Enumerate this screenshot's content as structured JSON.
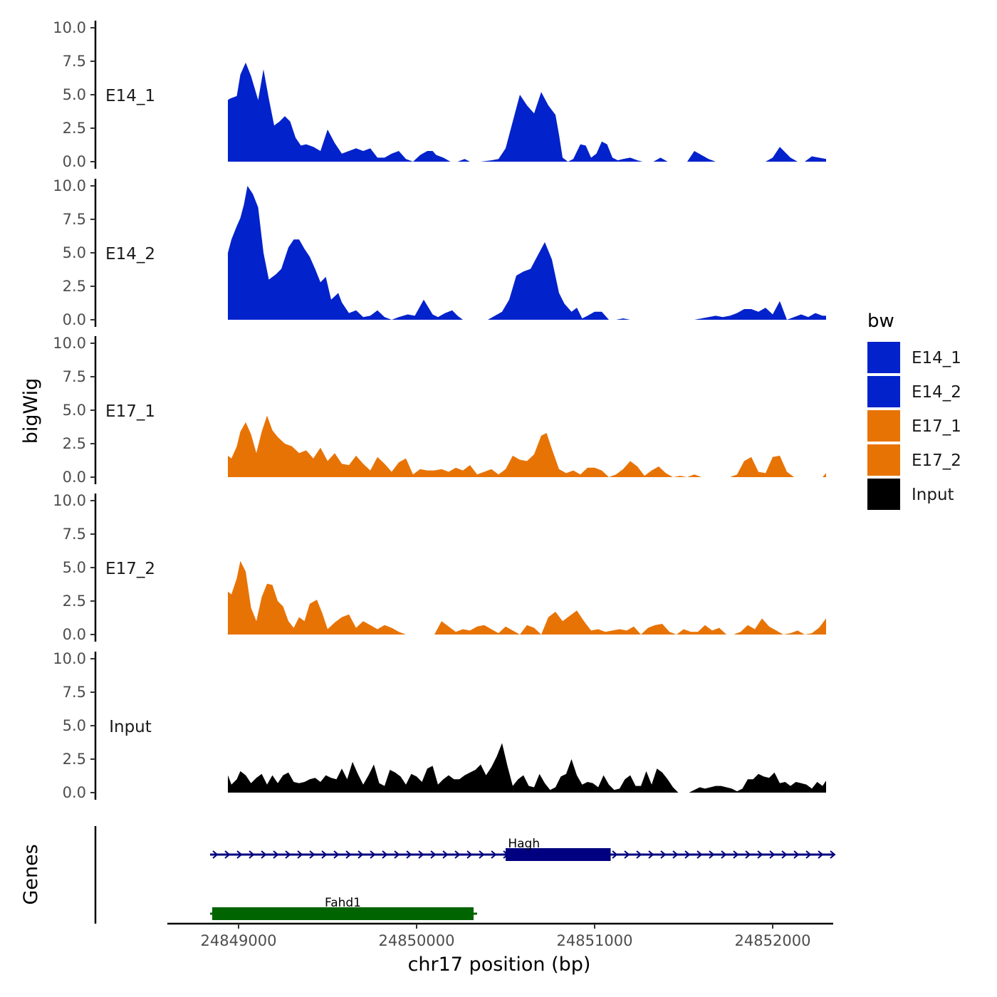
{
  "chart_data": {
    "type": "area",
    "xlabel": "chr17 position (bp)",
    "ylabel": "bigWig",
    "genes_label": "Genes",
    "xlim": [
      24848600,
      24852340
    ],
    "ylim": [
      0,
      10
    ],
    "x_ticks": [
      24849000,
      24850000,
      24851000,
      24852000
    ],
    "x_tick_labels": [
      "24849000",
      "24850000",
      "24851000",
      "24852000"
    ],
    "y_ticks": [
      0,
      2.5,
      5,
      7.5,
      10
    ],
    "y_tick_labels": [
      "0.0",
      "2.5",
      "5.0",
      "7.5",
      "10.0"
    ],
    "legend": {
      "title": "bw",
      "position": "right",
      "entries": [
        {
          "label": "E14_1",
          "color": "#0222CB"
        },
        {
          "label": "E14_2",
          "color": "#0222CB"
        },
        {
          "label": "E17_1",
          "color": "#E87305"
        },
        {
          "label": "E17_2",
          "color": "#E87305"
        },
        {
          "label": "Input",
          "color": "#000000"
        }
      ]
    },
    "series": [
      {
        "name": "E14_1",
        "color": "#0222CB",
        "x": [
          24848940,
          24848950,
          24848990,
          24849010,
          24849040,
          24849070,
          24849110,
          24849140,
          24849170,
          24849200,
          24849230,
          24849260,
          24849290,
          24849320,
          24849350,
          24849380,
          24849420,
          24849460,
          24849500,
          24849540,
          24849580,
          24849620,
          24849660,
          24849700,
          24849740,
          24849780,
          24849820,
          24849860,
          24849900,
          24849940,
          24849980,
          24850020,
          24850060,
          24850090,
          24850110,
          24850150,
          24850190,
          24850230,
          24850270,
          24850300,
          24850330,
          24850360,
          24850420,
          24850460,
          24850500,
          24850540,
          24850580,
          24850620,
          24850660,
          24850700,
          24850740,
          24850780,
          24850800,
          24850820,
          24850850,
          24850880,
          24850920,
          24850950,
          24850980,
          24851010,
          24851040,
          24851070,
          24851100,
          24851130,
          24851160,
          24851200,
          24851240,
          24851270,
          24851300,
          24851330,
          24851370,
          24851410,
          24851440,
          24851480,
          24851520,
          24851560,
          24851600,
          24851640,
          24851680,
          24851720,
          24851760,
          24851800,
          24851860,
          24851920,
          24851960,
          24852000,
          24852040,
          24852100,
          24852140,
          24852180,
          24852220,
          24852260,
          24852300
        ],
        "y": [
          4.6,
          4.7,
          4.9,
          6.5,
          7.4,
          6.4,
          4.6,
          6.9,
          4.7,
          2.7,
          3.0,
          3.4,
          3.0,
          1.8,
          1.2,
          1.3,
          1.1,
          0.8,
          2.4,
          1.4,
          0.6,
          0.8,
          1.0,
          0.8,
          1.0,
          0.3,
          0.3,
          0.6,
          0.8,
          0.2,
          0.0,
          0.5,
          0.8,
          0.8,
          0.5,
          0.3,
          0.0,
          0.0,
          0.2,
          0.0,
          0.0,
          0.0,
          0.1,
          0.2,
          1.0,
          3.0,
          5.0,
          4.2,
          3.6,
          5.2,
          4.2,
          3.5,
          2.0,
          0.3,
          0.0,
          0.2,
          1.3,
          1.2,
          0.3,
          0.6,
          1.5,
          1.3,
          0.3,
          0.1,
          0.2,
          0.3,
          0.1,
          0.0,
          0.0,
          0.0,
          0.3,
          0.0,
          0.0,
          0.0,
          0.0,
          0.8,
          0.5,
          0.2,
          0.0,
          0.0,
          0.0,
          0.0,
          0.0,
          0.0,
          0.0,
          0.3,
          1.1,
          0.3,
          0.0,
          0.0,
          0.4,
          0.3,
          0.2
        ]
      },
      {
        "name": "E14_2",
        "color": "#0222CB",
        "x": [
          24848940,
          24848960,
          24848990,
          24849010,
          24849030,
          24849050,
          24849080,
          24849110,
          24849140,
          24849170,
          24849210,
          24849240,
          24849280,
          24849310,
          24849340,
          24849370,
          24849400,
          24849430,
          24849460,
          24849490,
          24849520,
          24849560,
          24849580,
          24849620,
          24849660,
          24849700,
          24849740,
          24849780,
          24849820,
          24849860,
          24849900,
          24849950,
          24849990,
          24850040,
          24850090,
          24850120,
          24850160,
          24850200,
          24850230,
          24850260,
          24850300,
          24850340,
          24850400,
          24850440,
          24850480,
          24850520,
          24850560,
          24850600,
          24850640,
          24850680,
          24850720,
          24850760,
          24850800,
          24850830,
          24850870,
          24850900,
          24850930,
          24850960,
          24851000,
          24851040,
          24851080,
          24851120,
          24851160,
          24851200,
          24851240,
          24851280,
          24851320,
          24851360,
          24851400,
          24851440,
          24851480,
          24851520,
          24851560,
          24851600,
          24851640,
          24851680,
          24851720,
          24851760,
          24851800,
          24851840,
          24851880,
          24851920,
          24851960,
          24852000,
          24852040,
          24852080,
          24852120,
          24852160,
          24852200,
          24852240,
          24852280,
          24852300
        ],
        "y": [
          5.0,
          6.0,
          7.0,
          7.6,
          8.6,
          10.0,
          9.4,
          8.4,
          5.0,
          3.0,
          3.4,
          3.8,
          5.4,
          6.0,
          6.0,
          5.3,
          4.7,
          3.8,
          2.8,
          3.2,
          1.5,
          2.0,
          1.3,
          0.5,
          0.7,
          0.2,
          0.3,
          0.7,
          0.2,
          0.0,
          0.2,
          0.4,
          0.3,
          1.5,
          0.4,
          0.2,
          0.5,
          0.7,
          0.3,
          0.0,
          0.0,
          0.0,
          0.0,
          0.3,
          0.6,
          1.5,
          3.3,
          3.6,
          3.8,
          4.8,
          5.8,
          4.5,
          2.0,
          1.2,
          0.6,
          0.9,
          0.1,
          0.3,
          0.6,
          0.6,
          0.0,
          0.0,
          0.1,
          0.0,
          0.0,
          0.0,
          0.0,
          0.0,
          0.0,
          0.0,
          0.0,
          0.0,
          0.0,
          0.1,
          0.2,
          0.3,
          0.2,
          0.3,
          0.5,
          0.8,
          0.8,
          0.6,
          0.9,
          0.4,
          1.4,
          0.0,
          0.2,
          0.4,
          0.2,
          0.5,
          0.3,
          0.3
        ]
      },
      {
        "name": "E17_1",
        "color": "#E87305",
        "x": [
          24848940,
          24848960,
          24848990,
          24849010,
          24849040,
          24849070,
          24849100,
          24849130,
          24849160,
          24849190,
          24849220,
          24849260,
          24849300,
          24849340,
          24849380,
          24849420,
          24849460,
          24849500,
          24849540,
          24849580,
          24849620,
          24849660,
          24849700,
          24849740,
          24849780,
          24849820,
          24849860,
          24849900,
          24849940,
          24849980,
          24850020,
          24850060,
          24850100,
          24850140,
          24850180,
          24850220,
          24850260,
          24850300,
          24850340,
          24850380,
          24850420,
          24850460,
          24850500,
          24850540,
          24850580,
          24850620,
          24850660,
          24850700,
          24850730,
          24850760,
          24850800,
          24850840,
          24850880,
          24850920,
          24850960,
          24851000,
          24851040,
          24851080,
          24851120,
          24851160,
          24851200,
          24851240,
          24851280,
          24851320,
          24851360,
          24851400,
          24851440,
          24851480,
          24851520,
          24851560,
          24851600,
          24851640,
          24851680,
          24851720,
          24851760,
          24851800,
          24851840,
          24851880,
          24851920,
          24851960,
          24852000,
          24852040,
          24852080,
          24852120,
          24852160,
          24852200,
          24852240,
          24852280,
          24852300
        ],
        "y": [
          1.6,
          1.4,
          2.3,
          3.4,
          4.1,
          3.2,
          1.8,
          3.4,
          4.6,
          3.5,
          3.0,
          2.5,
          2.3,
          1.8,
          2.0,
          1.4,
          2.2,
          1.2,
          1.8,
          1.0,
          0.9,
          1.6,
          1.0,
          0.5,
          1.5,
          1.0,
          0.4,
          1.1,
          1.4,
          0.2,
          0.6,
          0.5,
          0.5,
          0.6,
          0.4,
          0.7,
          0.5,
          0.9,
          0.2,
          0.4,
          0.6,
          0.2,
          0.6,
          1.6,
          1.3,
          1.2,
          1.7,
          3.1,
          3.3,
          2.1,
          0.6,
          0.3,
          0.5,
          0.2,
          0.7,
          0.7,
          0.5,
          0.0,
          0.2,
          0.6,
          1.2,
          0.8,
          0.1,
          0.5,
          0.8,
          0.3,
          0.0,
          0.1,
          0.0,
          0.2,
          0.0,
          0.0,
          0.0,
          0.0,
          0.0,
          0.2,
          1.2,
          1.5,
          0.4,
          0.3,
          1.5,
          1.6,
          0.4,
          0.0,
          0.0,
          0.0,
          0.0,
          0.0,
          0.3
        ]
      },
      {
        "name": "E17_2",
        "color": "#E87305",
        "x": [
          24848940,
          24848960,
          24848990,
          24849010,
          24849040,
          24849070,
          24849100,
          24849130,
          24849160,
          24849190,
          24849220,
          24849250,
          24849280,
          24849310,
          24849340,
          24849370,
          24849400,
          24849440,
          24849470,
          24849500,
          24849540,
          24849580,
          24849620,
          24849660,
          24849700,
          24849740,
          24849780,
          24849820,
          24849860,
          24849900,
          24849940,
          24849980,
          24850020,
          24850060,
          24850100,
          24850140,
          24850180,
          24850220,
          24850260,
          24850300,
          24850340,
          24850380,
          24850420,
          24850460,
          24850500,
          24850540,
          24850580,
          24850620,
          24850660,
          24850700,
          24850740,
          24850780,
          24850820,
          24850860,
          24850900,
          24850940,
          24850980,
          24851020,
          24851060,
          24851100,
          24851140,
          24851180,
          24851220,
          24851260,
          24851300,
          24851340,
          24851380,
          24851420,
          24851460,
          24851500,
          24851540,
          24851580,
          24851620,
          24851660,
          24851700,
          24851740,
          24851780,
          24851820,
          24851860,
          24851900,
          24851940,
          24851980,
          24852020,
          24852060,
          24852100,
          24852140,
          24852180,
          24852220,
          24852260,
          24852300
        ],
        "y": [
          3.2,
          3.0,
          4.2,
          5.5,
          4.7,
          2.0,
          1.0,
          2.8,
          3.8,
          3.7,
          2.5,
          2.1,
          1.0,
          0.5,
          1.3,
          1.0,
          2.3,
          2.6,
          1.6,
          0.4,
          0.9,
          1.3,
          1.5,
          0.5,
          1.0,
          0.7,
          0.4,
          0.7,
          0.5,
          0.2,
          0.0,
          0.0,
          0.0,
          0.0,
          0.0,
          1.0,
          0.6,
          0.2,
          0.4,
          0.3,
          0.6,
          0.7,
          0.4,
          0.1,
          0.6,
          0.3,
          0.0,
          0.7,
          0.5,
          0.0,
          1.3,
          1.7,
          1.0,
          1.4,
          1.8,
          1.0,
          0.3,
          0.4,
          0.2,
          0.3,
          0.4,
          0.3,
          0.6,
          0.0,
          0.5,
          0.7,
          0.8,
          0.2,
          0.0,
          0.4,
          0.2,
          0.2,
          0.7,
          0.3,
          0.5,
          0.0,
          0.0,
          0.2,
          0.7,
          0.4,
          1.2,
          0.6,
          0.3,
          0.0,
          0.1,
          0.3,
          0.0,
          0.1,
          0.5,
          1.2
        ]
      },
      {
        "name": "Input",
        "color": "#000000",
        "x": [
          24848940,
          24848960,
          24848990,
          24849010,
          24849040,
          24849070,
          24849100,
          24849130,
          24849160,
          24849190,
          24849220,
          24849250,
          24849280,
          24849310,
          24849340,
          24849370,
          24849400,
          24849430,
          24849460,
          24849490,
          24849520,
          24849550,
          24849580,
          24849610,
          24849640,
          24849670,
          24849700,
          24849730,
          24849760,
          24849790,
          24849820,
          24849850,
          24849880,
          24849910,
          24849940,
          24849970,
          24850000,
          24850030,
          24850060,
          24850090,
          24850120,
          24850150,
          24850180,
          24850210,
          24850240,
          24850270,
          24850300,
          24850330,
          24850360,
          24850390,
          24850420,
          24850450,
          24850480,
          24850510,
          24850540,
          24850570,
          24850600,
          24850630,
          24850660,
          24850690,
          24850720,
          24850750,
          24850780,
          24850810,
          24850840,
          24850870,
          24850900,
          24850930,
          24850960,
          24850990,
          24851020,
          24851050,
          24851080,
          24851110,
          24851140,
          24851170,
          24851200,
          24851230,
          24851260,
          24851290,
          24851320,
          24851350,
          24851380,
          24851410,
          24851440,
          24851470,
          24851500,
          24851530,
          24851560,
          24851590,
          24851620,
          24851650,
          24851680,
          24851710,
          24851740,
          24851770,
          24851800,
          24851830,
          24851860,
          24851890,
          24851920,
          24851950,
          24851980,
          24852010,
          24852040,
          24852070,
          24852100,
          24852130,
          24852160,
          24852190,
          24852220,
          24852250,
          24852280,
          24852300
        ],
        "y": [
          1.3,
          0.6,
          1.0,
          1.6,
          1.3,
          0.7,
          1.1,
          1.4,
          0.6,
          1.3,
          0.7,
          1.3,
          1.5,
          0.8,
          0.7,
          0.8,
          1.0,
          1.1,
          0.8,
          1.3,
          1.1,
          1.0,
          1.8,
          1.0,
          2.3,
          1.4,
          0.6,
          1.3,
          2.1,
          0.7,
          0.5,
          1.7,
          1.5,
          1.2,
          0.6,
          1.4,
          1.2,
          0.8,
          1.8,
          2.0,
          0.6,
          1.0,
          1.3,
          1.0,
          1.0,
          1.3,
          1.5,
          1.7,
          2.1,
          1.3,
          1.9,
          2.7,
          3.7,
          2.0,
          0.5,
          1.0,
          1.3,
          0.5,
          0.4,
          1.4,
          0.7,
          0.2,
          0.4,
          1.2,
          1.4,
          2.5,
          1.3,
          0.6,
          0.8,
          0.7,
          0.4,
          1.3,
          0.6,
          0.2,
          0.3,
          1.0,
          1.3,
          0.5,
          0.5,
          1.6,
          0.6,
          1.8,
          1.5,
          1.0,
          0.4,
          0.0,
          0.0,
          0.0,
          0.2,
          0.4,
          0.3,
          0.4,
          0.5,
          0.5,
          0.4,
          0.3,
          0.1,
          0.3,
          1.0,
          1.0,
          1.4,
          1.2,
          1.1,
          1.5,
          0.7,
          0.8,
          0.5,
          0.8,
          0.7,
          0.6,
          0.3,
          0.8,
          0.5,
          0.9
        ]
      }
    ],
    "genes": [
      {
        "name": "Hagh",
        "start": 24848880,
        "end": 24852300,
        "strand": "+",
        "thick_start": 24850500,
        "thick_end": 24851090,
        "color": "#000080"
      },
      {
        "name": "Fahd1",
        "start": 24848880,
        "end": 24850300,
        "strand": "+",
        "thick_start": 24848880,
        "thick_end": 24850300,
        "color": "#006400"
      }
    ]
  }
}
